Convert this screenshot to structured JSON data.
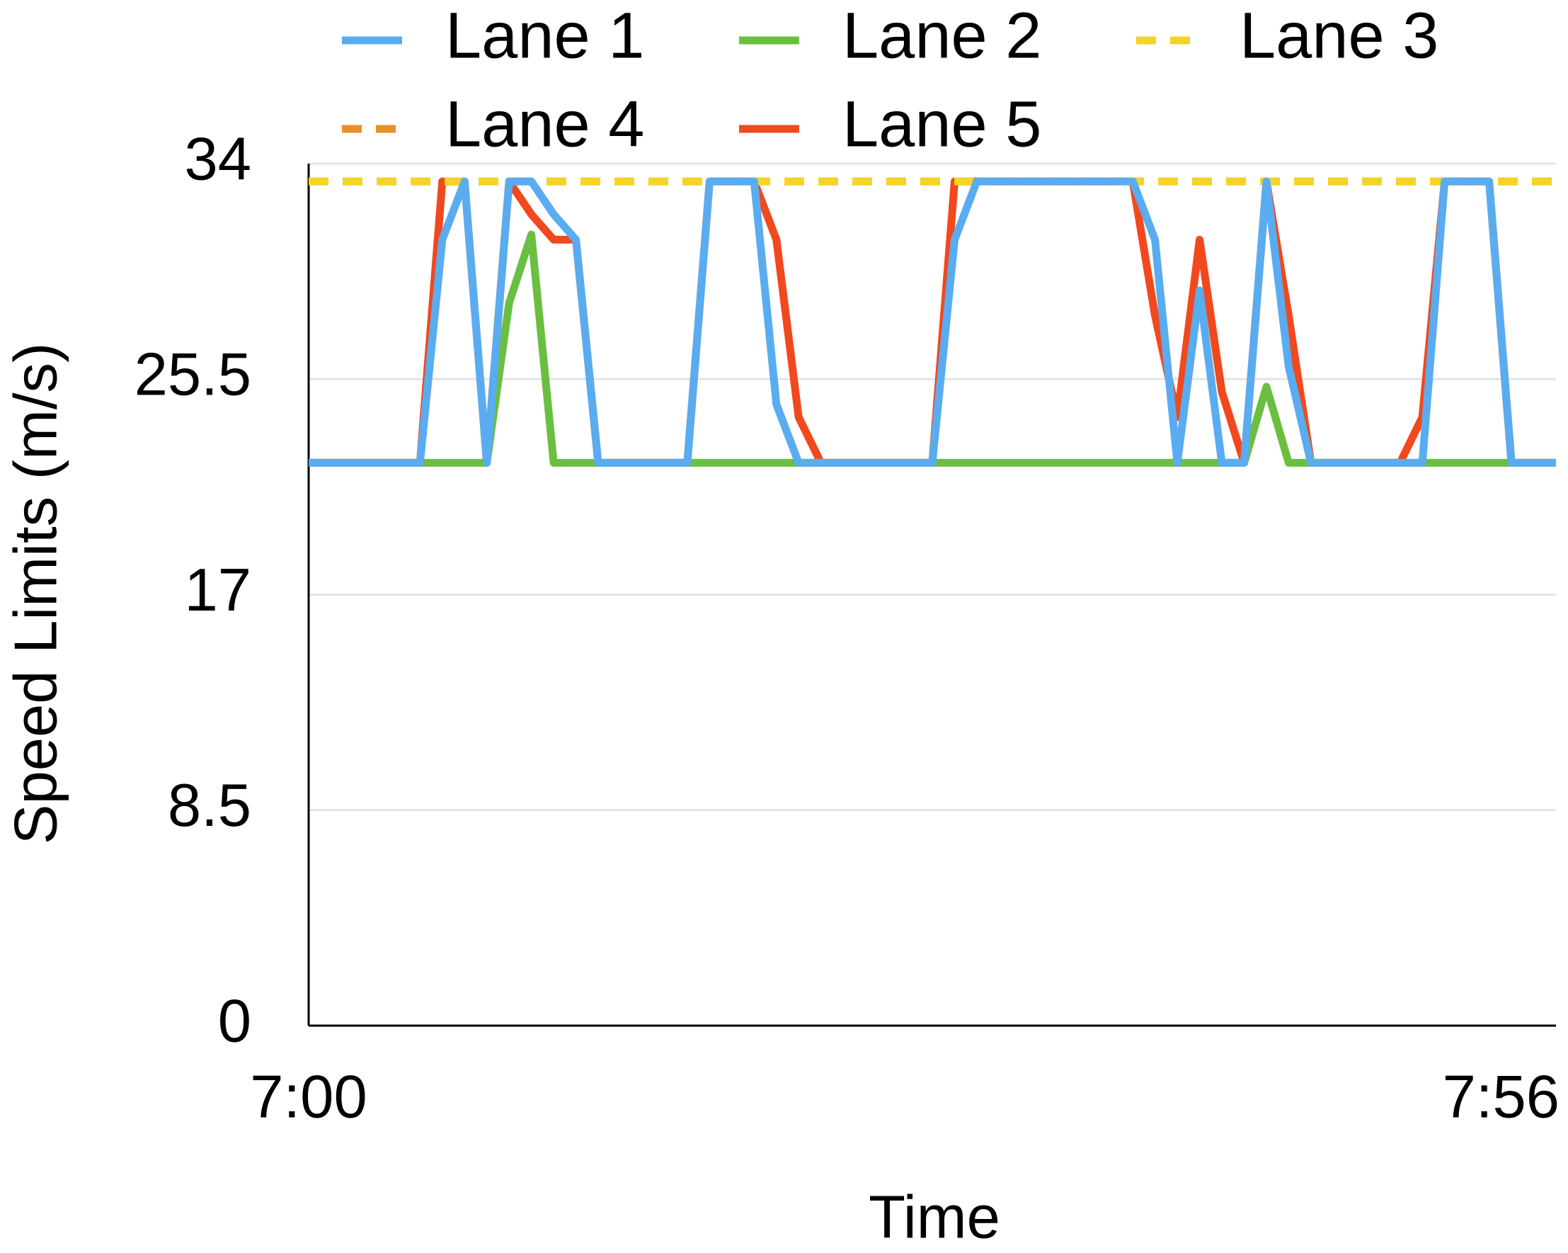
{
  "chart_data": {
    "type": "line",
    "x_label": "Time",
    "y_label": "Speed Limits (m/s)",
    "categories": [
      "7:00",
      null,
      null,
      null,
      null,
      null,
      null,
      null,
      null,
      null,
      null,
      null,
      null,
      null,
      null,
      null,
      null,
      null,
      null,
      null,
      null,
      null,
      null,
      null,
      null,
      null,
      null,
      null,
      null,
      null,
      null,
      null,
      null,
      null,
      null,
      null,
      null,
      null,
      null,
      null,
      null,
      null,
      null,
      null,
      null,
      null,
      null,
      null,
      null,
      null,
      null,
      null,
      null,
      null,
      null,
      null,
      "7:56"
    ],
    "series": [
      {
        "name": "Lane 1",
        "color": "#5aacf0",
        "style": "solid",
        "values": [
          22.2,
          22.2,
          22.2,
          22.2,
          22.2,
          22.2,
          31,
          33.3,
          22.2,
          33.3,
          33.3,
          32,
          31,
          22.2,
          22.2,
          22.2,
          22.2,
          22.2,
          33.3,
          33.3,
          33.3,
          24.5,
          22.2,
          22.2,
          22.2,
          22.2,
          22.2,
          22.2,
          22.2,
          31,
          33.3,
          33.3,
          33.3,
          33.3,
          33.3,
          33.3,
          33.3,
          33.3,
          31,
          22.2,
          29,
          22.2,
          22.2,
          33.3,
          26,
          22.2,
          22.2,
          22.2,
          22.2,
          22.2,
          22.2,
          33.3,
          33.3,
          33.3,
          22.2,
          22.2,
          22.2
        ]
      },
      {
        "name": "Lane 2",
        "color": "#6abf40",
        "style": "solid",
        "values": [
          22.2,
          22.2,
          22.2,
          22.2,
          22.2,
          22.2,
          22.2,
          22.2,
          22.2,
          28.5,
          31.2,
          22.2,
          22.2,
          22.2,
          22.2,
          22.2,
          22.2,
          22.2,
          22.2,
          22.2,
          22.2,
          22.2,
          22.2,
          22.2,
          22.2,
          22.2,
          22.2,
          22.2,
          22.2,
          22.2,
          22.2,
          22.2,
          22.2,
          22.2,
          22.2,
          22.2,
          22.2,
          22.2,
          22.2,
          22.2,
          22.2,
          22.2,
          22.2,
          25.2,
          22.2,
          22.2,
          22.2,
          22.2,
          22.2,
          22.2,
          22.2,
          22.2,
          22.2,
          22.2,
          22.2,
          22.2,
          22.2
        ]
      },
      {
        "name": "Lane 3",
        "color": "#f5d327",
        "style": "dashed",
        "values": [
          33.3,
          33.3,
          33.3,
          33.3,
          33.3,
          33.3,
          33.3,
          33.3,
          33.3,
          33.3,
          33.3,
          33.3,
          33.3,
          33.3,
          33.3,
          33.3,
          33.3,
          33.3,
          33.3,
          33.3,
          33.3,
          33.3,
          33.3,
          33.3,
          33.3,
          33.3,
          33.3,
          33.3,
          33.3,
          33.3,
          33.3,
          33.3,
          33.3,
          33.3,
          33.3,
          33.3,
          33.3,
          33.3,
          33.3,
          33.3,
          33.3,
          33.3,
          33.3,
          33.3,
          33.3,
          33.3,
          33.3,
          33.3,
          33.3,
          33.3,
          33.3,
          33.3,
          33.3,
          33.3,
          33.3,
          33.3,
          33.3
        ]
      },
      {
        "name": "Lane 4",
        "color": "#e8912a",
        "style": "dashed",
        "values": [
          33.3,
          33.3,
          33.3,
          33.3,
          33.3,
          33.3,
          33.3,
          33.3,
          33.3,
          33.3,
          33.3,
          33.3,
          33.3,
          33.3,
          33.3,
          33.3,
          33.3,
          33.3,
          33.3,
          33.3,
          33.3,
          33.3,
          33.3,
          33.3,
          33.3,
          33.3,
          33.3,
          33.3,
          33.3,
          33.3,
          33.3,
          33.3,
          33.3,
          33.3,
          33.3,
          33.3,
          33.3,
          33.3,
          33.3,
          33.3,
          33.3,
          33.3,
          33.3,
          33.3,
          33.3,
          33.3,
          33.3,
          33.3,
          33.3,
          33.3,
          33.3,
          33.3,
          33.3,
          33.3,
          33.3,
          33.3,
          33.3
        ]
      },
      {
        "name": "Lane 5",
        "color": "#f2481e",
        "style": "solid",
        "values": [
          22.2,
          22.2,
          22.2,
          22.2,
          22.2,
          22.2,
          33.3,
          33.3,
          22.2,
          33.3,
          32,
          31,
          31,
          22.2,
          22.2,
          22.2,
          22.2,
          22.2,
          33.3,
          33.3,
          33.3,
          31,
          24,
          22.2,
          22.2,
          22.2,
          22.2,
          22.2,
          22.2,
          33.3,
          33.3,
          33.3,
          33.3,
          33.3,
          33.3,
          33.3,
          33.3,
          33.3,
          28,
          24,
          31,
          25,
          22.2,
          33.3,
          28,
          22.2,
          22.2,
          22.2,
          22.2,
          22.2,
          24,
          33.3,
          33.3,
          33.3,
          22.2,
          22.2,
          22.2
        ]
      }
    ],
    "ylim": [
      0,
      34
    ],
    "yticks": [
      0,
      8.5,
      17,
      25.5,
      34
    ],
    "grid": true,
    "legend": "top"
  }
}
